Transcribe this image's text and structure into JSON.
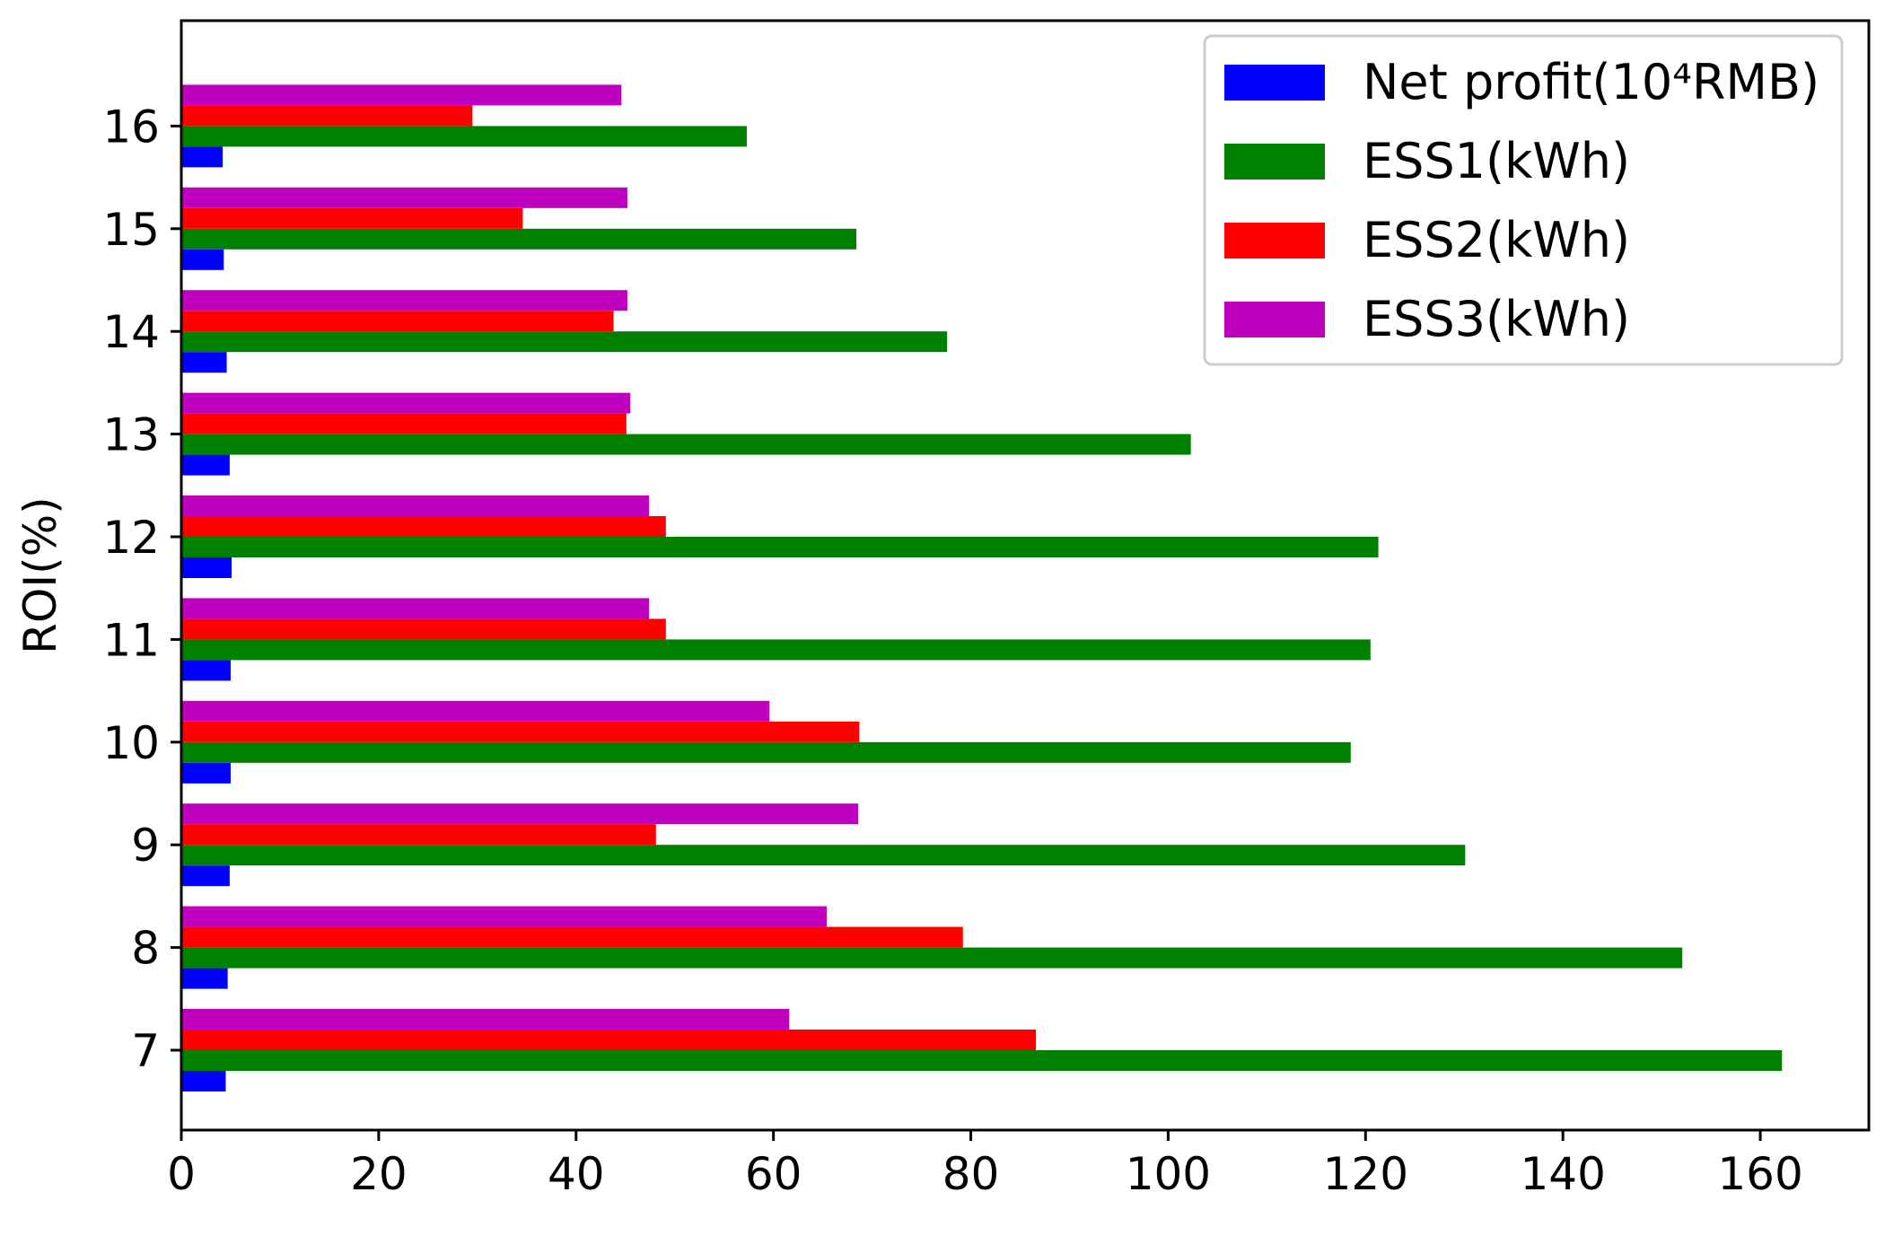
{
  "chart_data": {
    "type": "bar",
    "orientation": "horizontal",
    "title": "",
    "xlabel": "",
    "ylabel": "ROI(%)",
    "categories": [
      "7",
      "8",
      "9",
      "10",
      "11",
      "12",
      "13",
      "14",
      "15",
      "16"
    ],
    "xlim": [
      0,
      171
    ],
    "xticks": [
      "0",
      "20",
      "40",
      "60",
      "80",
      "100",
      "120",
      "140",
      "160"
    ],
    "grid": false,
    "legend_position": "top-right",
    "series": [
      {
        "name": "Net profit(10⁴RMB)",
        "color": "#0000ff",
        "values": [
          4.5,
          4.7,
          4.9,
          5.0,
          5.0,
          5.1,
          4.9,
          4.6,
          4.3,
          4.2
        ]
      },
      {
        "name": "ESS1(kWh)",
        "color": "#008000",
        "values": [
          162.2,
          152.1,
          130.1,
          118.5,
          120.5,
          121.3,
          102.3,
          77.6,
          68.4,
          57.3
        ]
      },
      {
        "name": "ESS2(kWh)",
        "color": "#ff0000",
        "values": [
          86.6,
          79.2,
          48.1,
          68.7,
          49.1,
          49.1,
          45.1,
          43.8,
          34.6,
          29.5
        ]
      },
      {
        "name": "ESS3(kWh)",
        "color": "#bf00bf",
        "values": [
          61.6,
          65.4,
          68.6,
          59.6,
          47.4,
          47.4,
          45.5,
          45.2,
          45.2,
          44.6
        ]
      }
    ]
  }
}
